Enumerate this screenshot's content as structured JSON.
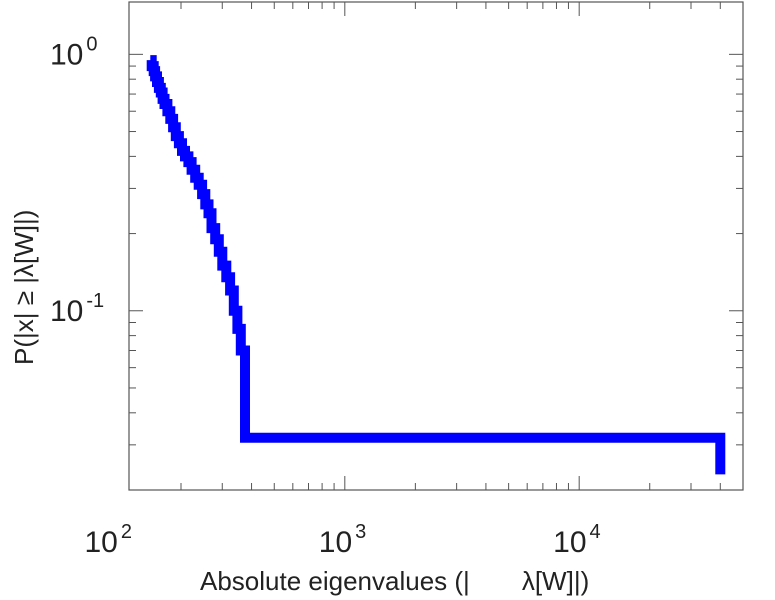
{
  "chart_data": {
    "type": "line",
    "step": true,
    "xscale": "log",
    "yscale": "log",
    "xlim": [
      120,
      50000
    ],
    "ylim": [
      0.02,
      1.6
    ],
    "xlabel_pre": "Absolute eigenvalues (|",
    "xlabel_post": "λ[W]|)",
    "ylabel": "P(|x|  ≥ |λ[W]|)",
    "xticks": [
      {
        "value": 100,
        "base": "10",
        "exp": "2"
      },
      {
        "value": 1000,
        "base": "10",
        "exp": "3"
      },
      {
        "value": 10000,
        "base": "10",
        "exp": "4"
      }
    ],
    "yticks": [
      {
        "value": 0.1,
        "base": "10",
        "exp": "-1"
      },
      {
        "value": 1,
        "base": "10",
        "exp": "0"
      }
    ],
    "line_color": "#0000ff",
    "grid": false,
    "series": [
      {
        "x": [
          148,
          150,
          153,
          155,
          158,
          161,
          164,
          167,
          170,
          175,
          180,
          185,
          190,
          196,
          202,
          208,
          215,
          222,
          230,
          238,
          246,
          254,
          262,
          270,
          280,
          290,
          300,
          312,
          324,
          336,
          348,
          360,
          375,
          40000,
          40000
        ],
        "y": [
          0.95,
          0.9,
          0.86,
          0.82,
          0.78,
          0.74,
          0.71,
          0.67,
          0.64,
          0.6,
          0.56,
          0.52,
          0.48,
          0.45,
          0.42,
          0.4,
          0.38,
          0.355,
          0.33,
          0.31,
          0.285,
          0.26,
          0.24,
          0.21,
          0.19,
          0.17,
          0.15,
          0.135,
          0.12,
          0.1,
          0.085,
          0.07,
          0.032,
          0.032,
          0.023
        ]
      }
    ]
  }
}
